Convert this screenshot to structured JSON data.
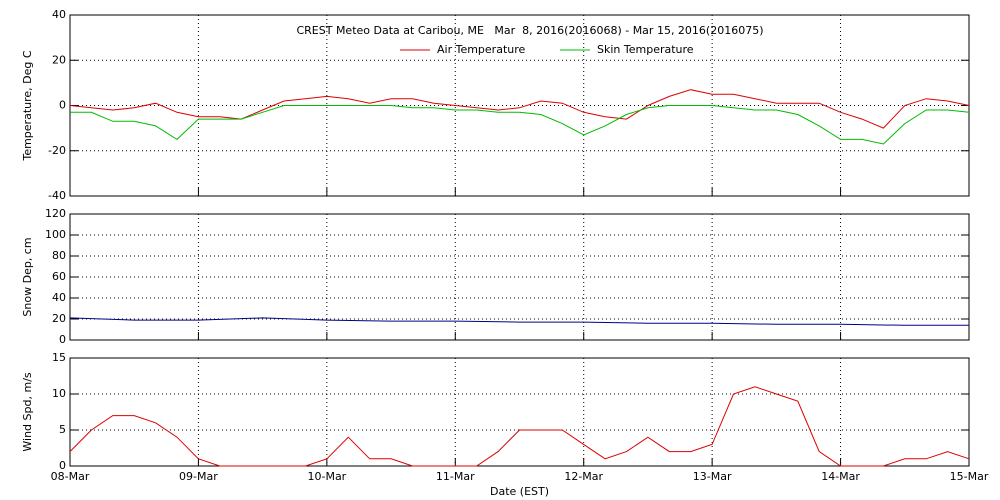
{
  "chart_data": [
    {
      "type": "line",
      "title": "CREST Meteo Data at Caribou, ME   Mar  8, 2016(2016068) - Mar 15, 2016(2016075)",
      "y_label": "Temperature, Deg C",
      "x": [
        0,
        4,
        8,
        12,
        16,
        20,
        24,
        28,
        32,
        36,
        40,
        44,
        48,
        52,
        56,
        60,
        64,
        68,
        72,
        76,
        80,
        84,
        88,
        92,
        96,
        100,
        104,
        108,
        112,
        116,
        120,
        124,
        128,
        132,
        136,
        140,
        144,
        148,
        152,
        156,
        160,
        164,
        168
      ],
      "series": [
        {
          "name": "Air Temperature",
          "color": "#dd0000",
          "values": [
            0,
            -1,
            -2,
            -1,
            1,
            -3,
            -5,
            -5,
            -6,
            -2,
            2,
            3,
            4,
            3,
            1,
            3,
            3,
            1,
            0,
            -1,
            -2,
            -1,
            2,
            1,
            -3,
            -5,
            -6,
            0,
            4,
            7,
            5,
            5,
            3,
            1,
            1,
            1,
            -3,
            -6,
            -10,
            0,
            3,
            2,
            0
          ]
        },
        {
          "name": "Skin Temperature",
          "color": "#00bb00",
          "values": [
            -3,
            -3,
            -7,
            -7,
            -9,
            -15,
            -6,
            -6,
            -6,
            -3,
            0,
            0,
            0,
            0,
            0,
            0,
            -1,
            -1,
            -2,
            -2,
            -3,
            -3,
            -4,
            -8,
            -13,
            -9,
            -4,
            -1,
            0,
            0,
            0,
            -1,
            -2,
            -2,
            -4,
            -9,
            -15,
            -15,
            -17,
            -8,
            -2,
            -2,
            -3
          ]
        }
      ],
      "xlim": [
        0,
        168
      ],
      "ylim": [
        -40,
        40
      ],
      "yticks": [
        -40,
        -20,
        0,
        20,
        40
      ],
      "grid": true
    },
    {
      "type": "line",
      "y_label": "Snow Dep, cm",
      "x": [
        0,
        12,
        24,
        36,
        48,
        60,
        72,
        84,
        96,
        108,
        120,
        132,
        144,
        156,
        168
      ],
      "series": [
        {
          "color": "#00008b",
          "values": [
            21,
            19,
            19,
            21,
            19,
            18,
            18,
            17,
            17,
            16,
            16,
            15,
            15,
            14,
            14
          ]
        }
      ],
      "xlim": [
        0,
        168
      ],
      "ylim": [
        0,
        120
      ],
      "yticks": [
        0,
        20,
        40,
        60,
        80,
        100,
        120
      ],
      "grid": true
    },
    {
      "type": "line",
      "y_label": "Wind Spd, m/s",
      "x_label": "Date (EST)",
      "x": [
        0,
        4,
        8,
        12,
        16,
        20,
        24,
        28,
        32,
        36,
        40,
        44,
        48,
        52,
        56,
        60,
        64,
        68,
        72,
        76,
        80,
        84,
        88,
        92,
        96,
        100,
        104,
        108,
        112,
        116,
        120,
        124,
        128,
        132,
        136,
        140,
        144,
        148,
        152,
        156,
        160,
        164,
        168
      ],
      "series": [
        {
          "color": "#dd0000",
          "values": [
            2,
            5,
            7,
            7,
            6,
            4,
            1,
            0,
            0,
            0,
            0,
            0,
            1,
            4,
            1,
            1,
            0,
            0,
            0,
            0,
            2,
            5,
            5,
            5,
            3,
            1,
            2,
            4,
            2,
            2,
            3,
            10,
            11,
            10,
            9,
            2,
            0,
            0,
            0,
            1,
            1,
            2,
            1
          ]
        }
      ],
      "xlim": [
        0,
        168
      ],
      "xticks": [
        {
          "value": 0,
          "label": "08-Mar"
        },
        {
          "value": 24,
          "label": "09-Mar"
        },
        {
          "value": 48,
          "label": "10-Mar"
        },
        {
          "value": 72,
          "label": "11-Mar"
        },
        {
          "value": 96,
          "label": "12-Mar"
        },
        {
          "value": 120,
          "label": "13-Mar"
        },
        {
          "value": 144,
          "label": "14-Mar"
        },
        {
          "value": 168,
          "label": "15-Mar"
        }
      ],
      "ylim": [
        0,
        15
      ],
      "yticks": [
        0,
        5,
        10,
        15
      ],
      "grid": true
    }
  ]
}
